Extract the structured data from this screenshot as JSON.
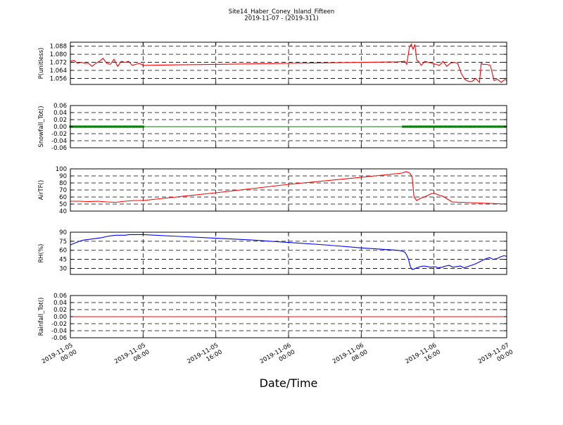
{
  "chart_data": {
    "type": "line",
    "title": "Site14_Haber_Coney_Island_Fifteen",
    "subtitle": "2019-11-07 - (2019-311)",
    "xlabel": "Date/Time",
    "x_ticks": [
      {
        "t": 0,
        "line1": "2019-11-05",
        "line2": "00:00"
      },
      {
        "t": 8,
        "line1": "2019-11-05",
        "line2": "08:00"
      },
      {
        "t": 16,
        "line1": "2019-11-05",
        "line2": "16:00"
      },
      {
        "t": 24,
        "line1": "2019-11-06",
        "line2": "00:00"
      },
      {
        "t": 32,
        "line1": "2019-11-06",
        "line2": "08:00"
      },
      {
        "t": 40,
        "line1": "2019-11-06",
        "line2": "16:00"
      },
      {
        "t": 48,
        "line1": "2019-11-07",
        "line2": "00:00"
      }
    ],
    "xlim": [
      0,
      48
    ],
    "grid": true,
    "panels": [
      {
        "ylabel": "P(unitless)",
        "ylim": [
          1.05,
          1.092
        ],
        "yticks": [
          1.056,
          1.064,
          1.072,
          1.08,
          1.088
        ],
        "tick_decimals": 3,
        "color": "#ff0000",
        "marker": false,
        "series": {
          "x": [
            0,
            0.4,
            0.8,
            1.2,
            1.6,
            2.0,
            2.4,
            2.8,
            3.2,
            3.6,
            4.0,
            4.4,
            4.8,
            5.2,
            5.6,
            6.0,
            6.4,
            6.8,
            7.2,
            7.6,
            8.0,
            12,
            16,
            20,
            24,
            28,
            32,
            36,
            36.8,
            37.0,
            37.3,
            37.5,
            37.7,
            37.9,
            38.1,
            38.3,
            38.6,
            39.0,
            39.4,
            39.8,
            40.2,
            40.6,
            41.0,
            41.4,
            41.8,
            42.2,
            42.6,
            43.0,
            43.4,
            43.8,
            44.2,
            44.6,
            45.0,
            45.2,
            45.4,
            45.8,
            46.2,
            46.6,
            47.0,
            47.4,
            47.8,
            48.0
          ],
          "y": [
            1.073,
            1.074,
            1.071,
            1.072,
            1.071,
            1.071,
            1.068,
            1.071,
            1.073,
            1.076,
            1.071,
            1.07,
            1.075,
            1.068,
            1.073,
            1.072,
            1.073,
            1.069,
            1.07,
            1.071,
            1.069,
            1.0695,
            1.07,
            1.0705,
            1.071,
            1.0715,
            1.072,
            1.0725,
            1.073,
            1.07,
            1.087,
            1.09,
            1.085,
            1.09,
            1.074,
            1.073,
            1.069,
            1.073,
            1.072,
            1.071,
            1.07,
            1.069,
            1.073,
            1.068,
            1.071,
            1.072,
            1.071,
            1.061,
            1.055,
            1.053,
            1.053,
            1.056,
            1.052,
            1.071,
            1.07,
            1.07,
            1.069,
            1.054,
            1.055,
            1.052,
            1.055,
            1.054
          ]
        }
      },
      {
        "ylabel": "Snowfall_Tot()",
        "ylim": [
          -0.06,
          0.06
        ],
        "yticks": [
          -0.06,
          -0.04,
          -0.02,
          0.0,
          0.02,
          0.04,
          0.06
        ],
        "tick_decimals": 2,
        "color": "#008000",
        "marker": true,
        "marker_ranges": [
          [
            0,
            8
          ],
          [
            36.6,
            48
          ]
        ],
        "series": {
          "x": [
            0,
            48
          ],
          "y": [
            0,
            0
          ]
        }
      },
      {
        "ylabel": "AirTF()",
        "ylim": [
          40,
          100
        ],
        "yticks": [
          40,
          50,
          60,
          70,
          80,
          90,
          100
        ],
        "tick_decimals": 0,
        "color": "#ff0000",
        "marker": false,
        "series": {
          "x": [
            0,
            1,
            2,
            3,
            4,
            5,
            6,
            7,
            8,
            16,
            24,
            32,
            36.5,
            36.9,
            37.2,
            37.4,
            37.6,
            37.8,
            38.1,
            38.5,
            38.9,
            39.3,
            39.7,
            40.1,
            40.5,
            41.0,
            41.5,
            42.0,
            44,
            46,
            48
          ],
          "y": [
            54,
            54,
            53.5,
            54,
            53,
            52.5,
            54,
            55,
            55,
            66,
            78,
            88,
            94,
            96,
            95,
            93,
            88,
            60,
            55,
            58,
            60,
            62,
            65,
            65,
            63,
            61,
            57,
            53,
            52,
            51,
            50
          ]
        }
      },
      {
        "ylabel": "RH(%)",
        "ylim": [
          20,
          90
        ],
        "yticks": [
          30,
          45,
          60,
          75,
          90
        ],
        "tick_decimals": 0,
        "color": "#0000ff",
        "marker": false,
        "series": {
          "x": [
            0,
            0.5,
            1,
            1.5,
            2,
            2.5,
            3,
            3.5,
            4,
            4.5,
            5,
            5.5,
            6,
            6.5,
            7,
            7.5,
            8,
            12,
            16,
            20,
            24,
            28,
            32,
            36,
            36.4,
            36.8,
            37.0,
            37.2,
            37.4,
            37.6,
            37.8,
            38.1,
            38.5,
            38.9,
            39.3,
            39.7,
            40.1,
            40.5,
            40.9,
            41.3,
            41.7,
            42.1,
            42.5,
            42.9,
            43.3,
            43.7,
            44.1,
            44.5,
            44.9,
            45.3,
            45.7,
            46.1,
            46.5,
            46.9,
            47.3,
            47.7,
            48.0
          ],
          "y": [
            69,
            72,
            75,
            77,
            78,
            79,
            80,
            81,
            83,
            84,
            85,
            85,
            85,
            86,
            86,
            86,
            86,
            83,
            80,
            77,
            73,
            69,
            64,
            60,
            59,
            57,
            52,
            45,
            33,
            28,
            29,
            31,
            33,
            34,
            33,
            32,
            33,
            31,
            32,
            34,
            35,
            32,
            33,
            34,
            31,
            33,
            35,
            37,
            40,
            43,
            46,
            48,
            45,
            46,
            49,
            51,
            50
          ]
        }
      },
      {
        "ylabel": "Rainfall_Tot()",
        "ylim": [
          -0.06,
          0.06
        ],
        "yticks": [
          -0.06,
          -0.04,
          -0.02,
          0.0,
          0.02,
          0.04,
          0.06
        ],
        "tick_decimals": 2,
        "color": "#ff0000",
        "marker": false,
        "series": {
          "x": [
            0,
            48
          ],
          "y": [
            0,
            0
          ]
        }
      }
    ]
  }
}
